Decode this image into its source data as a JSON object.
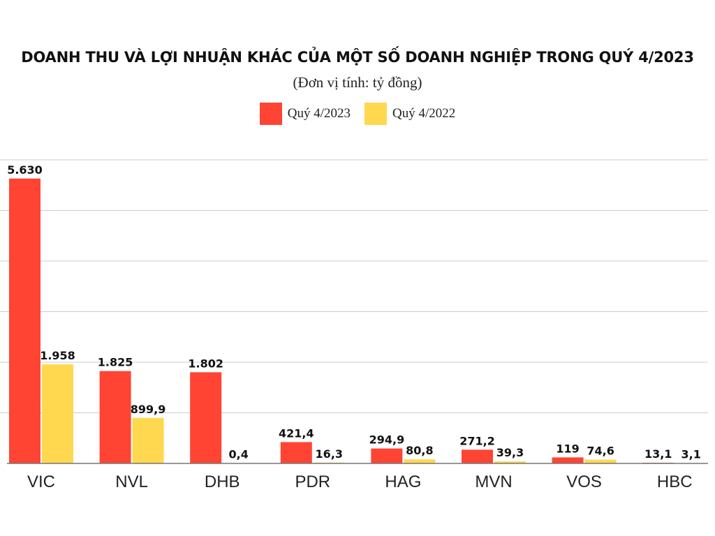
{
  "chart_data": {
    "type": "bar",
    "title": "DOANH THU VÀ LỢI NHUẬN KHÁC CỦA MỘT SỐ DOANH NGHIỆP TRONG QUÝ 4/2023",
    "subtitle": "(Đơn vị tính: tỷ đồng)",
    "categories": [
      "VIC",
      "NVL",
      "DHB",
      "PDR",
      "HAG",
      "MVN",
      "VOS",
      "HBC"
    ],
    "series": [
      {
        "name": "Quý 4/2023",
        "color": "#ff4433",
        "values": [
          5630,
          1825,
          1802,
          421.4,
          294.9,
          271.2,
          119,
          13.1
        ],
        "labels": [
          "5.630",
          "1.825",
          "1.802",
          "421,4",
          "294,9",
          "271,2",
          "119",
          "13,1"
        ]
      },
      {
        "name": "Quý 4/2022",
        "color": "#ffd84f",
        "values": [
          1958,
          899.9,
          0.4,
          16.3,
          80.8,
          39.3,
          74.6,
          3.1
        ],
        "labels": [
          "1.958",
          "899,9",
          "0,4",
          "16,3",
          "80,8",
          "39,3",
          "74,6",
          "3,1"
        ]
      }
    ],
    "xlabel": "",
    "ylabel": "",
    "ylim": [
      0,
      6000
    ],
    "grid": true,
    "legend": "top-center"
  }
}
